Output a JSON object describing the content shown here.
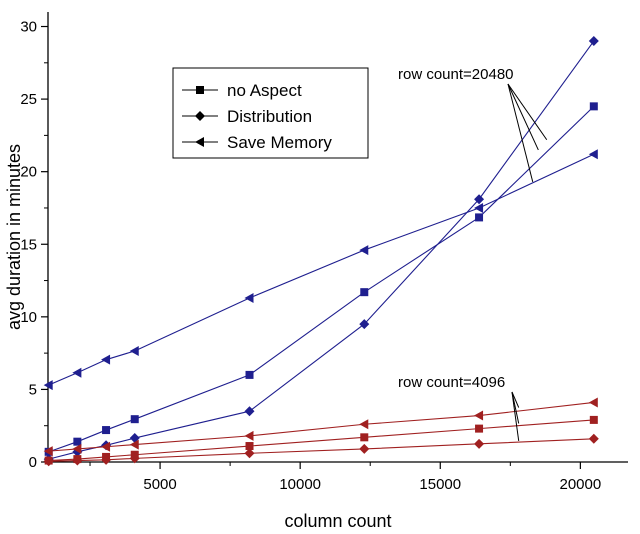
{
  "chart_data": {
    "type": "line",
    "xlabel": "column count",
    "ylabel": "avg duration in minutes",
    "xlim": [
      1000,
      21700
    ],
    "ylim": [
      0,
      31
    ],
    "xticks": [
      5000,
      10000,
      15000,
      20000
    ],
    "yticks": [
      0,
      5,
      10,
      15,
      20,
      25,
      30
    ],
    "grid": false,
    "legend_position": "top-left",
    "colors": {
      "row_20480": "#1f1f8f",
      "row_4096": "#a02020"
    },
    "x": [
      1024,
      2048,
      3072,
      4096,
      8192,
      12288,
      16384,
      20480
    ],
    "series": [
      {
        "name": "no Aspect",
        "group": "row count=20480",
        "marker": "square",
        "values": [
          0.7,
          1.4,
          2.2,
          2.95,
          6.0,
          11.7,
          16.85,
          24.5
        ]
      },
      {
        "name": "Distribution",
        "group": "row count=20480",
        "marker": "diamond",
        "values": [
          0.2,
          0.7,
          1.15,
          1.65,
          3.5,
          9.5,
          18.1,
          29.0
        ]
      },
      {
        "name": "Save Memory",
        "group": "row count=20480",
        "marker": "triangle-left",
        "values": [
          5.3,
          6.15,
          7.05,
          7.65,
          11.3,
          14.6,
          17.5,
          21.2
        ]
      },
      {
        "name": "no Aspect",
        "group": "row count=4096",
        "marker": "square",
        "values": [
          0.1,
          0.2,
          0.35,
          0.5,
          1.1,
          1.7,
          2.3,
          2.9
        ]
      },
      {
        "name": "Distribution",
        "group": "row count=4096",
        "marker": "diamond",
        "values": [
          0.05,
          0.1,
          0.15,
          0.25,
          0.6,
          0.9,
          1.25,
          1.6
        ]
      },
      {
        "name": "Save Memory",
        "group": "row count=4096",
        "marker": "triangle-left",
        "values": [
          0.75,
          0.9,
          1.05,
          1.2,
          1.8,
          2.6,
          3.2,
          4.1
        ]
      }
    ],
    "annotations": [
      "row count=20480",
      "row count=4096"
    ]
  },
  "legend": {
    "items": [
      {
        "label": "no Aspect",
        "marker": "square"
      },
      {
        "label": "Distribution",
        "marker": "diamond"
      },
      {
        "label": "Save Memory",
        "marker": "triangle-left"
      }
    ]
  }
}
